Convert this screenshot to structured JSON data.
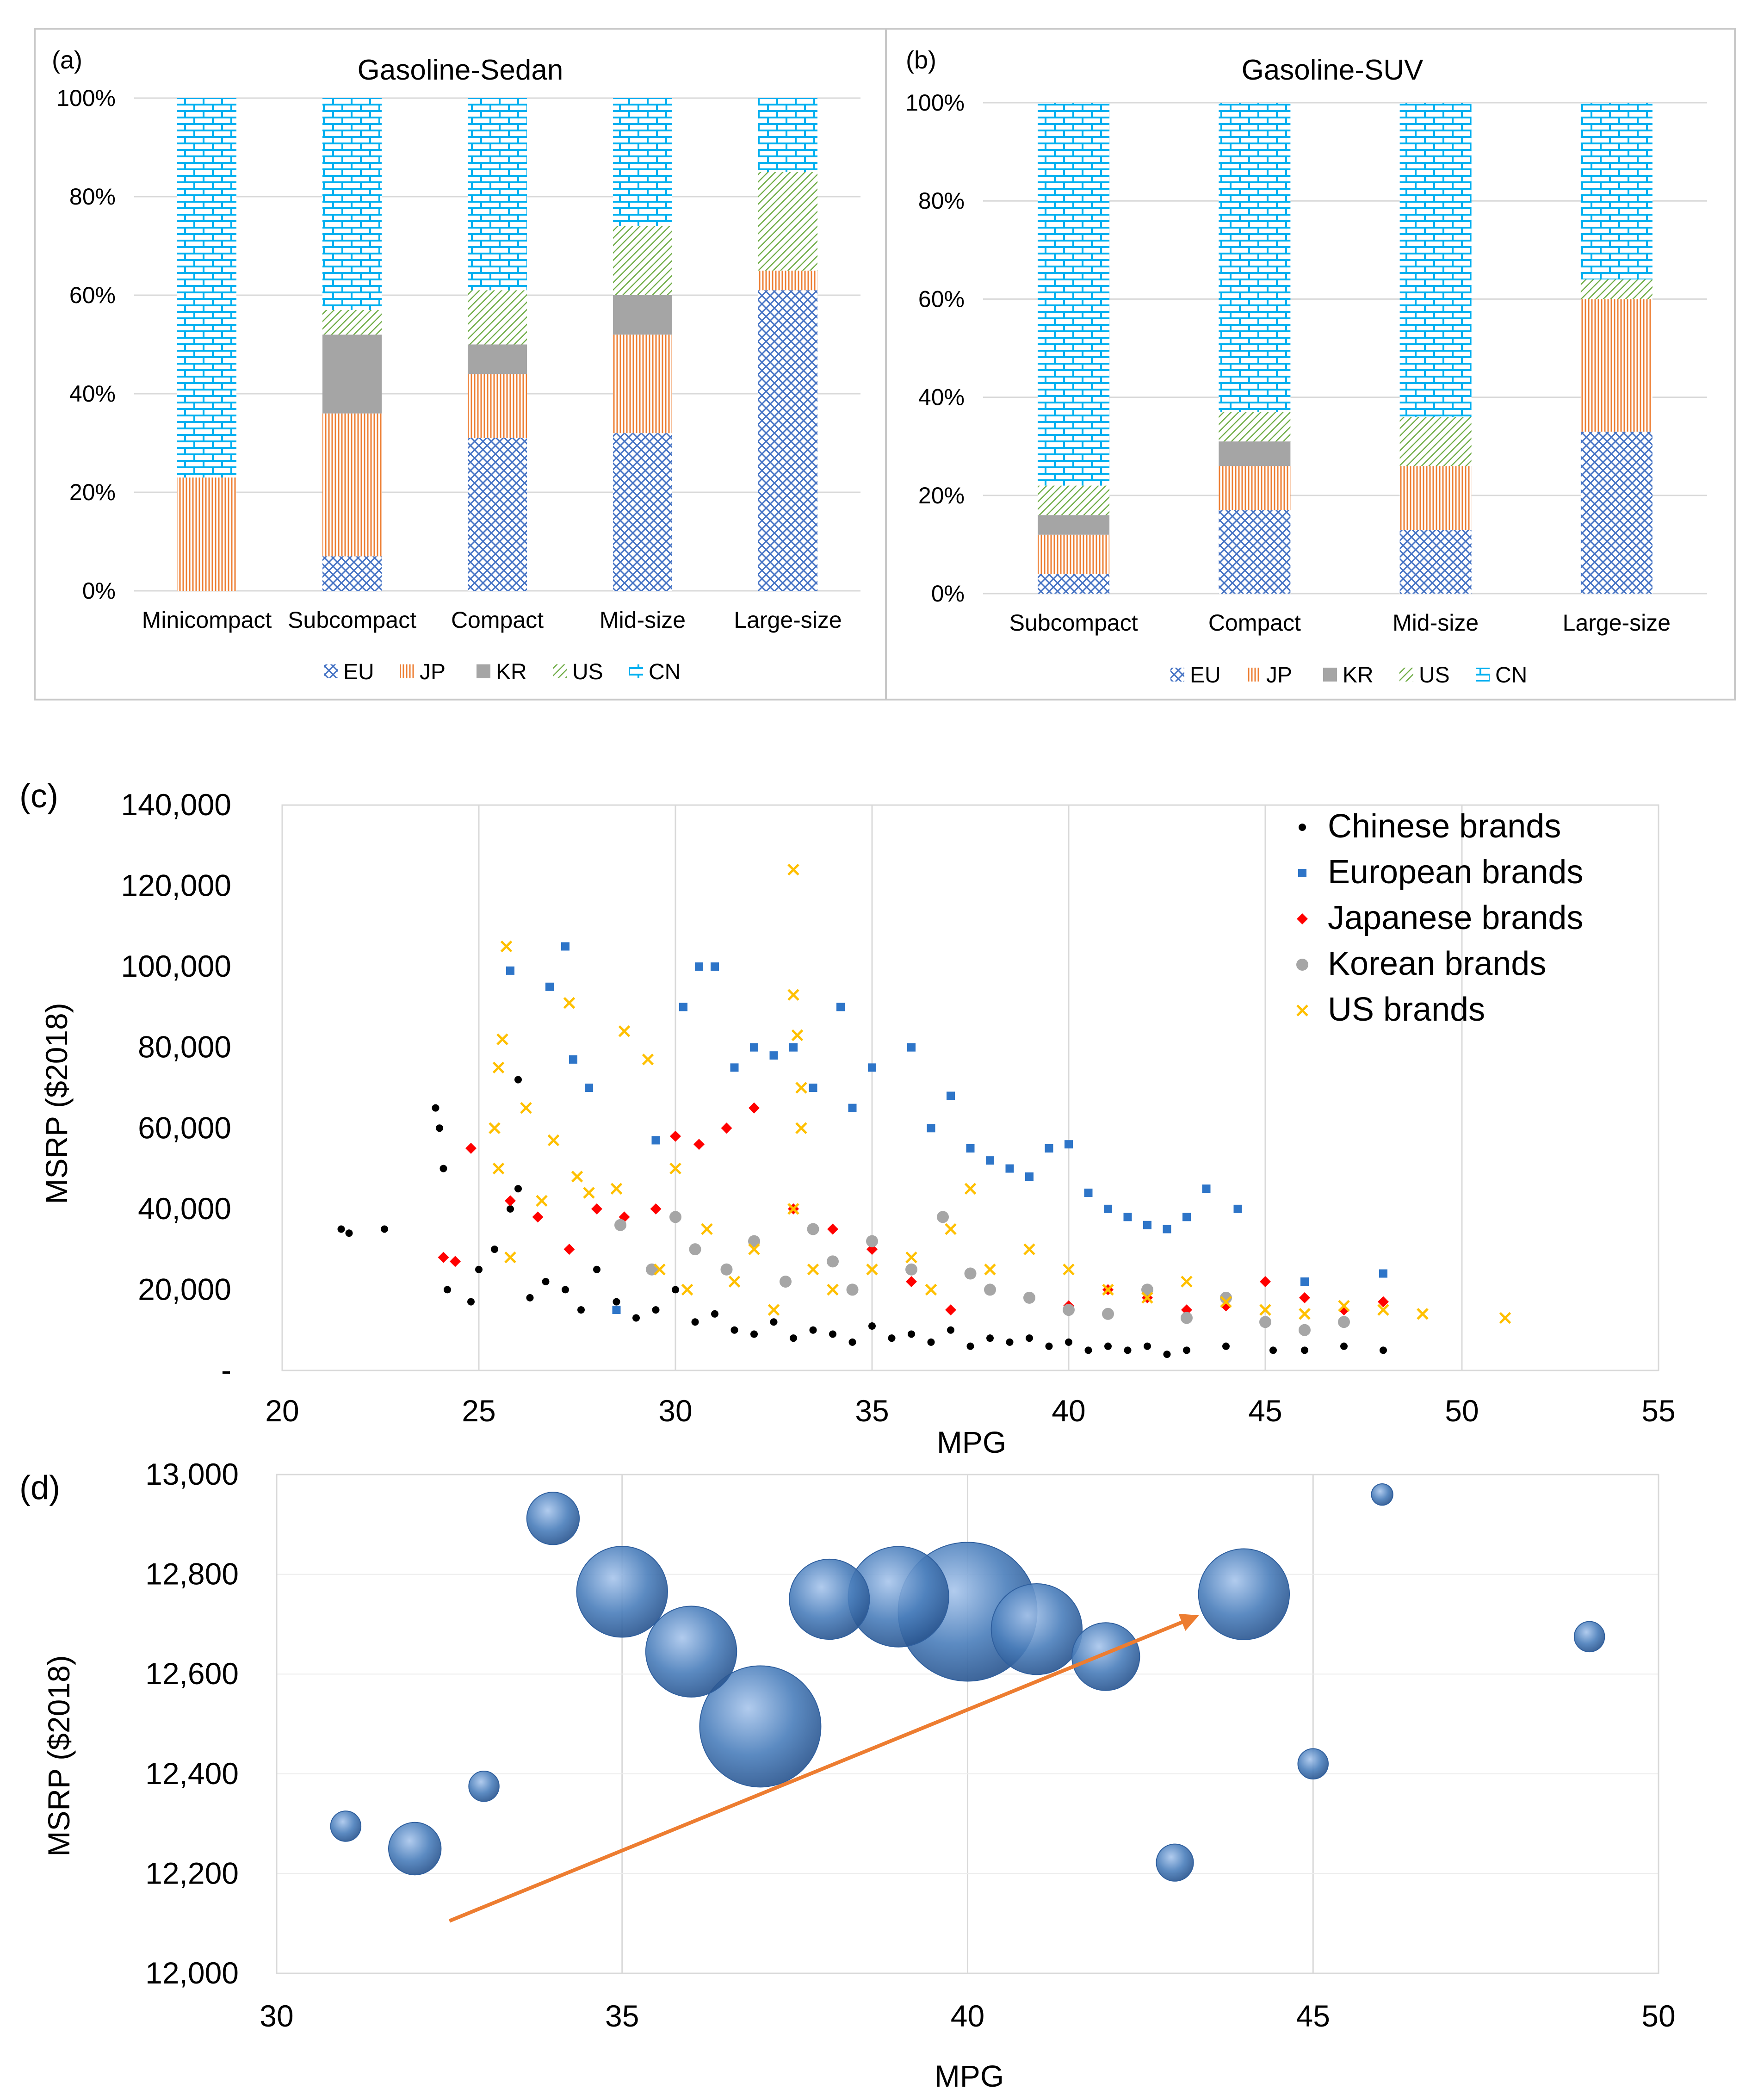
{
  "colors": {
    "EU": "#4472c4",
    "JP": "#ed7d31",
    "KR": "#a5a5a5",
    "US": "#70ad47",
    "CN": "#00b0f0",
    "chinese": "#000000",
    "european": "#2e75c8",
    "japanese": "#ff0000",
    "korean": "#a6a6a6",
    "us": "#ffc000",
    "bubble": "#4a7ebb",
    "arrow": "#ed7d31"
  },
  "chart_data": [
    {
      "panel": "(a)",
      "type": "bar",
      "stacked": "percent",
      "title": "Gasoline-Sedan",
      "categories": [
        "Minicompact",
        "Subcompact",
        "Compact",
        "Mid-size",
        "Large-size"
      ],
      "series": [
        {
          "name": "EU",
          "values": [
            0,
            7,
            31,
            32,
            61
          ]
        },
        {
          "name": "JP",
          "values": [
            23,
            29,
            13,
            20,
            4
          ]
        },
        {
          "name": "KR",
          "values": [
            0,
            16,
            6,
            8,
            0
          ]
        },
        {
          "name": "US",
          "values": [
            0,
            5,
            11,
            14,
            20
          ]
        },
        {
          "name": "CN",
          "values": [
            77,
            43,
            39,
            26,
            15
          ]
        }
      ],
      "yticks": [
        "0%",
        "20%",
        "40%",
        "60%",
        "80%",
        "100%"
      ],
      "ylim": [
        0,
        100
      ],
      "legend": "bottom"
    },
    {
      "panel": "(b)",
      "type": "bar",
      "stacked": "percent",
      "title": "Gasoline-SUV",
      "categories": [
        "Subcompact",
        "Compact",
        "Mid-size",
        "Large-size"
      ],
      "series": [
        {
          "name": "EU",
          "values": [
            4,
            17,
            13,
            33
          ]
        },
        {
          "name": "JP",
          "values": [
            8,
            9,
            13,
            27
          ]
        },
        {
          "name": "KR",
          "values": [
            4,
            5,
            0,
            0
          ]
        },
        {
          "name": "US",
          "values": [
            6,
            6,
            10,
            4
          ]
        },
        {
          "name": "CN",
          "values": [
            78,
            63,
            64,
            36
          ]
        }
      ],
      "yticks": [
        "0%",
        "20%",
        "40%",
        "60%",
        "80%",
        "100%"
      ],
      "ylim": [
        0,
        100
      ],
      "legend": "bottom"
    },
    {
      "panel": "(c)",
      "type": "scatter",
      "xlabel": "MPG",
      "ylabel": "MSRP ($2018)",
      "xlim": [
        20,
        55
      ],
      "ylim": [
        0,
        140000
      ],
      "xticks": [
        "20",
        "25",
        "30",
        "35",
        "40",
        "45",
        "50",
        "55"
      ],
      "yticks": [
        "-",
        "20,000",
        "40,000",
        "60,000",
        "80,000",
        "100,000",
        "120,000",
        "140,000"
      ],
      "legend": "top-right",
      "series": [
        {
          "name": "Chinese brands",
          "marker": "dot",
          "points": [
            [
              21.5,
              35000
            ],
            [
              21.7,
              34000
            ],
            [
              22.6,
              35000
            ],
            [
              23.9,
              65000
            ],
            [
              24,
              60000
            ],
            [
              24.1,
              50000
            ],
            [
              24.2,
              20000
            ],
            [
              24.8,
              17000
            ],
            [
              25,
              25000
            ],
            [
              25.4,
              30000
            ],
            [
              25.8,
              40000
            ],
            [
              26,
              72000
            ],
            [
              26,
              45000
            ],
            [
              26.3,
              18000
            ],
            [
              26.7,
              22000
            ],
            [
              27.2,
              20000
            ],
            [
              27.6,
              15000
            ],
            [
              28,
              25000
            ],
            [
              28.5,
              17000
            ],
            [
              29,
              13000
            ],
            [
              29.5,
              15000
            ],
            [
              30,
              20000
            ],
            [
              30.5,
              12000
            ],
            [
              31,
              14000
            ],
            [
              31.5,
              10000
            ],
            [
              32,
              9000
            ],
            [
              32.5,
              12000
            ],
            [
              33,
              8000
            ],
            [
              33.5,
              10000
            ],
            [
              34,
              9000
            ],
            [
              34.5,
              7000
            ],
            [
              35,
              11000
            ],
            [
              35.5,
              8000
            ],
            [
              36,
              9000
            ],
            [
              36.5,
              7000
            ],
            [
              37,
              10000
            ],
            [
              37.5,
              6000
            ],
            [
              38,
              8000
            ],
            [
              38.5,
              7000
            ],
            [
              39,
              8000
            ],
            [
              39.5,
              6000
            ],
            [
              40,
              7000
            ],
            [
              40.5,
              5000
            ],
            [
              41,
              6000
            ],
            [
              41.5,
              5000
            ],
            [
              42,
              6000
            ],
            [
              42.5,
              4000
            ],
            [
              43,
              5000
            ],
            [
              44,
              6000
            ],
            [
              45.2,
              5000
            ],
            [
              46,
              5000
            ],
            [
              47,
              6000
            ],
            [
              48,
              5000
            ]
          ]
        },
        {
          "name": "European brands",
          "marker": "square",
          "points": [
            [
              25.8,
              99000
            ],
            [
              26.8,
              95000
            ],
            [
              27.2,
              105000
            ],
            [
              27.4,
              77000
            ],
            [
              27.8,
              70000
            ],
            [
              28.5,
              15000
            ],
            [
              29.5,
              57000
            ],
            [
              30.2,
              90000
            ],
            [
              30.6,
              100000
            ],
            [
              31,
              100000
            ],
            [
              31.5,
              75000
            ],
            [
              32,
              80000
            ],
            [
              32.5,
              78000
            ],
            [
              33,
              80000
            ],
            [
              33.5,
              70000
            ],
            [
              34.2,
              90000
            ],
            [
              34.5,
              65000
            ],
            [
              35,
              75000
            ],
            [
              36,
              80000
            ],
            [
              36.5,
              60000
            ],
            [
              37,
              68000
            ],
            [
              37.5,
              55000
            ],
            [
              38,
              52000
            ],
            [
              38.5,
              50000
            ],
            [
              39,
              48000
            ],
            [
              39.5,
              55000
            ],
            [
              40,
              56000
            ],
            [
              40.5,
              44000
            ],
            [
              41,
              40000
            ],
            [
              41.5,
              38000
            ],
            [
              42,
              36000
            ],
            [
              42.5,
              35000
            ],
            [
              43,
              38000
            ],
            [
              43.5,
              45000
            ],
            [
              44.3,
              40000
            ],
            [
              46,
              22000
            ],
            [
              48,
              24000
            ]
          ]
        },
        {
          "name": "Japanese brands",
          "marker": "diamond",
          "points": [
            [
              24.1,
              28000
            ],
            [
              24.4,
              27000
            ],
            [
              24.8,
              55000
            ],
            [
              25.8,
              42000
            ],
            [
              26.5,
              38000
            ],
            [
              27.3,
              30000
            ],
            [
              28,
              40000
            ],
            [
              28.7,
              38000
            ],
            [
              29.5,
              40000
            ],
            [
              30,
              58000
            ],
            [
              30.6,
              56000
            ],
            [
              31.3,
              60000
            ],
            [
              32,
              65000
            ],
            [
              33,
              40000
            ],
            [
              34,
              35000
            ],
            [
              35,
              30000
            ],
            [
              36,
              22000
            ],
            [
              37,
              15000
            ],
            [
              38,
              20000
            ],
            [
              39,
              18000
            ],
            [
              40,
              16000
            ],
            [
              41,
              20000
            ],
            [
              42,
              18000
            ],
            [
              43,
              15000
            ],
            [
              44,
              16000
            ],
            [
              45,
              22000
            ],
            [
              46,
              18000
            ],
            [
              47,
              15000
            ],
            [
              48,
              17000
            ]
          ]
        },
        {
          "name": "Korean brands",
          "marker": "circle",
          "points": [
            [
              28.6,
              36000
            ],
            [
              29.4,
              25000
            ],
            [
              30,
              38000
            ],
            [
              30.5,
              30000
            ],
            [
              31.3,
              25000
            ],
            [
              32,
              32000
            ],
            [
              32.8,
              22000
            ],
            [
              33.5,
              35000
            ],
            [
              34,
              27000
            ],
            [
              34.5,
              20000
            ],
            [
              35,
              32000
            ],
            [
              36,
              25000
            ],
            [
              36.8,
              38000
            ],
            [
              37.5,
              24000
            ],
            [
              38,
              20000
            ],
            [
              39,
              18000
            ],
            [
              40,
              15000
            ],
            [
              41,
              14000
            ],
            [
              42,
              20000
            ],
            [
              43,
              13000
            ],
            [
              44,
              18000
            ],
            [
              45,
              12000
            ],
            [
              46,
              10000
            ],
            [
              47,
              12000
            ]
          ]
        },
        {
          "name": "US brands",
          "marker": "x",
          "points": [
            [
              25.7,
              105000
            ],
            [
              25.6,
              82000
            ],
            [
              25.5,
              75000
            ],
            [
              25.4,
              60000
            ],
            [
              25.5,
              50000
            ],
            [
              25.8,
              28000
            ],
            [
              26.2,
              65000
            ],
            [
              26.6,
              42000
            ],
            [
              26.9,
              57000
            ],
            [
              27.3,
              91000
            ],
            [
              27.5,
              48000
            ],
            [
              27.8,
              44000
            ],
            [
              28.5,
              45000
            ],
            [
              28.7,
              84000
            ],
            [
              29.3,
              77000
            ],
            [
              29.6,
              25000
            ],
            [
              30,
              50000
            ],
            [
              30.3,
              20000
            ],
            [
              30.8,
              35000
            ],
            [
              31.5,
              22000
            ],
            [
              32,
              30000
            ],
            [
              32.5,
              15000
            ],
            [
              33,
              124000
            ],
            [
              33,
              93000
            ],
            [
              33.1,
              83000
            ],
            [
              33.2,
              70000
            ],
            [
              33.2,
              60000
            ],
            [
              33,
              40000
            ],
            [
              33.5,
              25000
            ],
            [
              34,
              20000
            ],
            [
              35,
              25000
            ],
            [
              36,
              28000
            ],
            [
              36.5,
              20000
            ],
            [
              37,
              35000
            ],
            [
              37.5,
              45000
            ],
            [
              38,
              25000
            ],
            [
              39,
              30000
            ],
            [
              40,
              25000
            ],
            [
              41,
              20000
            ],
            [
              42,
              18000
            ],
            [
              43,
              22000
            ],
            [
              44,
              17000
            ],
            [
              45,
              15000
            ],
            [
              46,
              14000
            ],
            [
              47,
              16000
            ],
            [
              48,
              15000
            ],
            [
              49,
              14000
            ],
            [
              51.1,
              13000
            ]
          ]
        }
      ]
    },
    {
      "panel": "(d)",
      "type": "scatter",
      "subtype": "bubble",
      "xlabel": "MPG",
      "ylabel": "MSRP ($2018)",
      "xlim": [
        30,
        50
      ],
      "ylim": [
        12000,
        13000
      ],
      "xticks": [
        "30",
        "35",
        "40",
        "45",
        "50"
      ],
      "yticks": [
        "12,000",
        "12,200",
        "12,400",
        "12,600",
        "12,800",
        "13,000"
      ],
      "points": [
        {
          "x": 31,
          "y": 12295,
          "size": 2
        },
        {
          "x": 32,
          "y": 12250,
          "size": 6
        },
        {
          "x": 33,
          "y": 12375,
          "size": 2
        },
        {
          "x": 34,
          "y": 12912,
          "size": 6
        },
        {
          "x": 35,
          "y": 12765,
          "size": 18
        },
        {
          "x": 36,
          "y": 12645,
          "size": 18
        },
        {
          "x": 37,
          "y": 12495,
          "size": 32
        },
        {
          "x": 38,
          "y": 12750,
          "size": 14
        },
        {
          "x": 39,
          "y": 12755,
          "size": 22
        },
        {
          "x": 40,
          "y": 12725,
          "size": 42
        },
        {
          "x": 41,
          "y": 12690,
          "size": 18
        },
        {
          "x": 42,
          "y": 12635,
          "size": 10
        },
        {
          "x": 43,
          "y": 12222,
          "size": 3
        },
        {
          "x": 44,
          "y": 12760,
          "size": 18
        },
        {
          "x": 45,
          "y": 12420,
          "size": 2
        },
        {
          "x": 46,
          "y": 12960,
          "size": 1
        },
        {
          "x": 49,
          "y": 12675,
          "size": 2
        }
      ],
      "trend_arrow": {
        "from": [
          32.5,
          12105
        ],
        "to": [
          43.3,
          12715
        ]
      }
    }
  ]
}
